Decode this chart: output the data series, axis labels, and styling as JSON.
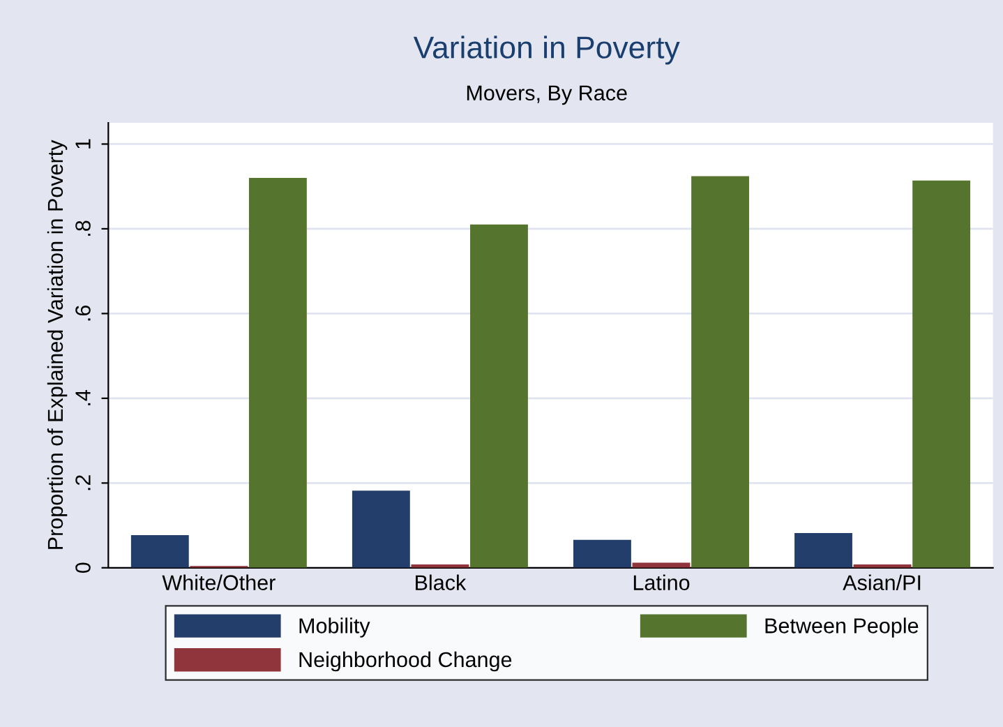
{
  "chart_data": {
    "type": "bar",
    "title": "Variation in Poverty",
    "subtitle": "Movers, By Race",
    "ylabel": "Proportion of Explained Variation in Poverty",
    "categories": [
      "White/Other",
      "Black",
      "Latino",
      "Asian/PI"
    ],
    "series": [
      {
        "name": "Mobility",
        "color": "#243e6c",
        "values": [
          0.077,
          0.182,
          0.066,
          0.082
        ]
      },
      {
        "name": "Neighborhood Change",
        "color": "#90353b",
        "values": [
          0.004,
          0.008,
          0.012,
          0.008
        ]
      },
      {
        "name": "Between People",
        "color": "#55752f",
        "values": [
          0.92,
          0.81,
          0.924,
          0.914
        ]
      }
    ],
    "ylim": [
      0,
      1.05
    ],
    "yticks": [
      {
        "value": 0,
        "label": "0"
      },
      {
        "value": 0.2,
        "label": ".2"
      },
      {
        "value": 0.4,
        "label": ".4"
      },
      {
        "value": 0.6,
        "label": ".6"
      },
      {
        "value": 0.8,
        "label": ".8"
      },
      {
        "value": 1,
        "label": "1"
      }
    ],
    "grid": "y",
    "legend": "bottom"
  }
}
